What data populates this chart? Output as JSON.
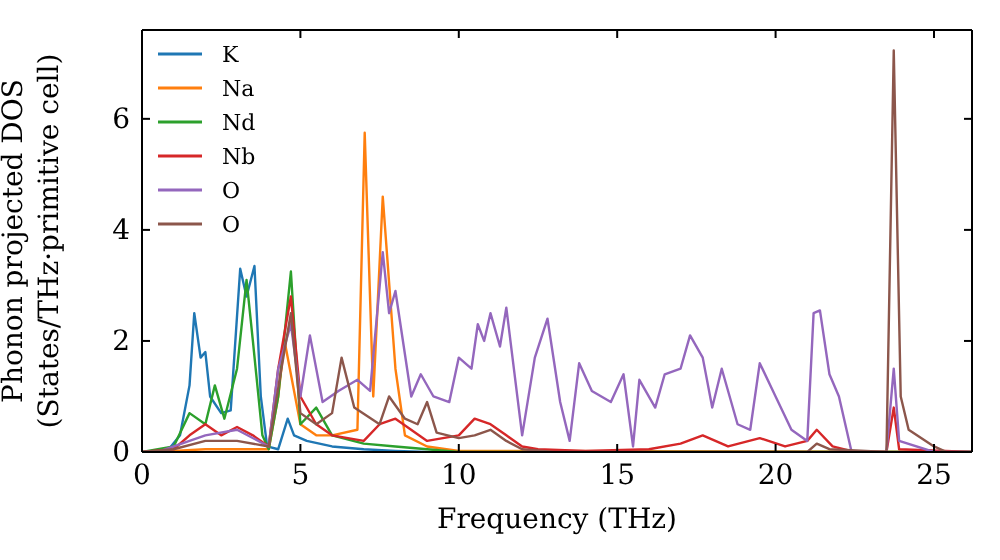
{
  "chart_data": {
    "type": "line",
    "xlabel": "Frequency (THz)",
    "ylabel": "Phonon projected DOS\n(States/THz·primitive cell)",
    "xlim": [
      0,
      26.2
    ],
    "ylim": [
      0,
      7.6
    ],
    "xticks": [
      0,
      5,
      10,
      15,
      20,
      25
    ],
    "yticks": [
      0,
      2,
      4,
      6
    ],
    "legend": "top left",
    "grid": false,
    "series": [
      {
        "name": "K",
        "color": "#1f77b4",
        "x": [
          0,
          0.8,
          1.2,
          1.5,
          1.65,
          1.85,
          2.0,
          2.15,
          2.5,
          2.8,
          3.1,
          3.3,
          3.55,
          3.75,
          3.95,
          4.3,
          4.6,
          4.8,
          5.2,
          6,
          7,
          8,
          9,
          26.2
        ],
        "values": [
          0,
          0.02,
          0.3,
          1.2,
          2.5,
          1.7,
          1.8,
          1.0,
          0.7,
          0.75,
          3.3,
          2.8,
          3.35,
          1.0,
          0.1,
          0.05,
          0.6,
          0.3,
          0.2,
          0.1,
          0.05,
          0.02,
          0,
          0
        ]
      },
      {
        "name": "Na",
        "color": "#ff7f0e",
        "x": [
          0,
          1,
          2,
          3,
          4,
          4.3,
          4.5,
          5,
          5.5,
          6,
          6.8,
          7.03,
          7.3,
          7.6,
          8,
          8.3,
          9,
          10,
          26.2
        ],
        "values": [
          0,
          0.02,
          0.05,
          0.05,
          0.05,
          1.0,
          2.0,
          0.5,
          0.3,
          0.3,
          0.4,
          5.75,
          1.0,
          4.6,
          1.5,
          0.3,
          0.1,
          0.02,
          0
        ]
      },
      {
        "name": "Nd",
        "color": "#2ca02c",
        "x": [
          0,
          1,
          1.5,
          2,
          2.3,
          2.6,
          3.0,
          3.3,
          3.5,
          3.8,
          4.0,
          4.3,
          4.7,
          5,
          5.5,
          6,
          7,
          8,
          9,
          10,
          26.2
        ],
        "values": [
          0,
          0.1,
          0.7,
          0.5,
          1.2,
          0.6,
          1.5,
          3.1,
          2.0,
          0.3,
          0.05,
          1.0,
          3.25,
          0.5,
          0.8,
          0.3,
          0.15,
          0.1,
          0.05,
          0,
          0
        ]
      },
      {
        "name": "Nb",
        "color": "#d62728",
        "x": [
          0,
          1,
          1.5,
          2,
          2.5,
          3,
          3.5,
          4,
          4.3,
          4.7,
          5,
          5.5,
          6,
          7,
          7.5,
          8,
          9,
          10,
          10.5,
          11,
          11.5,
          12,
          12.5,
          14,
          16,
          17,
          17.7,
          18.5,
          19.5,
          20.3,
          21,
          21.3,
          21.8,
          22.5,
          23.5,
          23.73,
          23.9,
          26.2
        ],
        "values": [
          0,
          0.05,
          0.3,
          0.5,
          0.3,
          0.45,
          0.3,
          0.1,
          1.5,
          2.8,
          1.0,
          0.5,
          0.3,
          0.2,
          0.5,
          0.6,
          0.2,
          0.3,
          0.6,
          0.5,
          0.3,
          0.1,
          0.05,
          0.02,
          0.05,
          0.15,
          0.3,
          0.1,
          0.25,
          0.1,
          0.2,
          0.4,
          0.1,
          0,
          0,
          0.8,
          0.05,
          0
        ]
      },
      {
        "name": "O",
        "color": "#9467bd",
        "x": [
          0,
          0.5,
          1.5,
          2,
          3,
          4,
          4.3,
          4.7,
          5,
          5.3,
          5.7,
          6.2,
          6.8,
          7.2,
          7.6,
          7.8,
          8,
          8.5,
          8.8,
          9.2,
          9.7,
          10,
          10.4,
          10.6,
          10.8,
          11,
          11.3,
          11.5,
          12,
          12.4,
          12.8,
          13.2,
          13.5,
          13.8,
          14.2,
          14.8,
          15.2,
          15.5,
          15.7,
          16.2,
          16.5,
          17,
          17.3,
          17.7,
          18,
          18.3,
          18.8,
          19.2,
          19.5,
          20,
          20.5,
          21,
          21.2,
          21.4,
          21.7,
          22,
          22.4,
          23.5,
          23.73,
          23.9,
          25,
          26.2
        ],
        "values": [
          0,
          0,
          0.2,
          0.3,
          0.4,
          0.1,
          1.5,
          2.3,
          1.0,
          2.1,
          0.9,
          1.1,
          1.3,
          1.1,
          3.6,
          2.5,
          2.9,
          1.0,
          1.4,
          1.0,
          0.9,
          1.7,
          1.5,
          2.3,
          2.0,
          2.5,
          1.9,
          2.6,
          0.3,
          1.7,
          2.4,
          0.9,
          0.2,
          1.6,
          1.1,
          0.9,
          1.4,
          0.1,
          1.3,
          0.8,
          1.4,
          1.5,
          2.1,
          1.7,
          0.8,
          1.5,
          0.5,
          0.4,
          1.6,
          1.0,
          0.4,
          0.2,
          2.5,
          2.55,
          1.4,
          1.0,
          0,
          0,
          1.5,
          0.2,
          0,
          0
        ]
      },
      {
        "name": "O",
        "color": "#8c564b",
        "x": [
          0,
          1,
          2,
          3,
          4,
          4.4,
          4.7,
          5,
          5.5,
          6,
          6.3,
          6.7,
          7.5,
          7.8,
          8.3,
          8.7,
          9,
          9.3,
          10,
          10.5,
          11,
          11.5,
          12,
          13,
          21,
          21.3,
          21.7,
          23.5,
          23.73,
          23.95,
          24.2,
          25,
          25.4,
          26.2
        ],
        "values": [
          0,
          0.05,
          0.2,
          0.2,
          0.1,
          1.5,
          2.5,
          0.7,
          0.5,
          0.7,
          1.7,
          0.8,
          0.5,
          1.0,
          0.6,
          0.5,
          0.9,
          0.35,
          0.25,
          0.3,
          0.4,
          0.2,
          0.05,
          0,
          0,
          0.15,
          0.05,
          0,
          7.23,
          1.0,
          0.4,
          0.1,
          0,
          0
        ]
      }
    ]
  }
}
